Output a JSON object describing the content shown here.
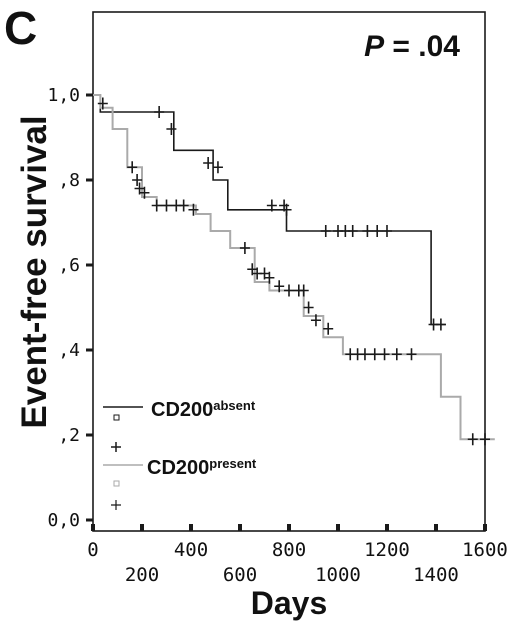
{
  "panel_label": "C",
  "p_value": {
    "italic": "P",
    "rest": " = .04"
  },
  "chart_data": {
    "type": "line",
    "xlabel": "Days",
    "ylabel": "Event-free survival",
    "xlim": [
      0,
      1600
    ],
    "ylim": [
      0,
      1.0
    ],
    "x_ticks": [
      {
        "value": 0,
        "label": "0",
        "row": "top"
      },
      {
        "value": 200,
        "label": "200",
        "row": "bottom"
      },
      {
        "value": 400,
        "label": "400",
        "row": "top"
      },
      {
        "value": 600,
        "label": "600",
        "row": "bottom"
      },
      {
        "value": 800,
        "label": "800",
        "row": "top"
      },
      {
        "value": 1000,
        "label": "1000",
        "row": "bottom"
      },
      {
        "value": 1200,
        "label": "1200",
        "row": "top"
      },
      {
        "value": 1400,
        "label": "1400",
        "row": "bottom"
      },
      {
        "value": 1600,
        "label": "1600",
        "row": "top"
      }
    ],
    "y_ticks": [
      {
        "value": 0.0,
        "label": "0,0"
      },
      {
        "value": 0.2,
        "label": ",2"
      },
      {
        "value": 0.4,
        "label": ",4"
      },
      {
        "value": 0.6,
        "label": ",6"
      },
      {
        "value": 0.8,
        "label": ",8"
      },
      {
        "value": 1.0,
        "label": "1,0"
      }
    ],
    "grid": false,
    "legend_position": "bottom-left",
    "series": [
      {
        "name_main": "CD200",
        "name_sup": "absent",
        "color": "#1a1a1a",
        "steps": [
          [
            0,
            1.0
          ],
          [
            30,
            0.96
          ],
          [
            330,
            0.87
          ],
          [
            490,
            0.8
          ],
          [
            550,
            0.73
          ],
          [
            790,
            0.68
          ],
          [
            1380,
            0.46
          ],
          [
            1440,
            0.46
          ]
        ],
        "censored": [
          [
            270,
            0.96
          ],
          [
            320,
            0.92
          ],
          [
            470,
            0.84
          ],
          [
            510,
            0.83
          ],
          [
            730,
            0.74
          ],
          [
            780,
            0.74
          ],
          [
            790,
            0.73
          ],
          [
            950,
            0.68
          ],
          [
            1000,
            0.68
          ],
          [
            1030,
            0.68
          ],
          [
            1060,
            0.68
          ],
          [
            1120,
            0.68
          ],
          [
            1160,
            0.68
          ],
          [
            1200,
            0.68
          ],
          [
            1390,
            0.46
          ],
          [
            1420,
            0.46
          ]
        ]
      },
      {
        "name_main": "CD200",
        "name_sup": "present",
        "color": "#aaaaaa",
        "steps": [
          [
            0,
            1.0
          ],
          [
            30,
            0.97
          ],
          [
            80,
            0.92
          ],
          [
            140,
            0.83
          ],
          [
            200,
            0.76
          ],
          [
            260,
            0.74
          ],
          [
            420,
            0.72
          ],
          [
            480,
            0.68
          ],
          [
            560,
            0.64
          ],
          [
            660,
            0.56
          ],
          [
            720,
            0.54
          ],
          [
            860,
            0.48
          ],
          [
            940,
            0.43
          ],
          [
            1020,
            0.39
          ],
          [
            1420,
            0.29
          ],
          [
            1500,
            0.19
          ],
          [
            1640,
            0.19
          ]
        ],
        "censored": [
          [
            40,
            0.98
          ],
          [
            160,
            0.83
          ],
          [
            180,
            0.8
          ],
          [
            190,
            0.78
          ],
          [
            210,
            0.77
          ],
          [
            260,
            0.74
          ],
          [
            300,
            0.74
          ],
          [
            340,
            0.74
          ],
          [
            370,
            0.74
          ],
          [
            410,
            0.73
          ],
          [
            620,
            0.64
          ],
          [
            650,
            0.59
          ],
          [
            670,
            0.58
          ],
          [
            700,
            0.58
          ],
          [
            720,
            0.57
          ],
          [
            760,
            0.55
          ],
          [
            800,
            0.54
          ],
          [
            840,
            0.54
          ],
          [
            860,
            0.54
          ],
          [
            880,
            0.5
          ],
          [
            910,
            0.47
          ],
          [
            960,
            0.45
          ],
          [
            1050,
            0.39
          ],
          [
            1080,
            0.39
          ],
          [
            1110,
            0.39
          ],
          [
            1150,
            0.39
          ],
          [
            1190,
            0.39
          ],
          [
            1240,
            0.39
          ],
          [
            1300,
            0.39
          ],
          [
            1550,
            0.19
          ],
          [
            1600,
            0.19
          ]
        ]
      }
    ]
  }
}
